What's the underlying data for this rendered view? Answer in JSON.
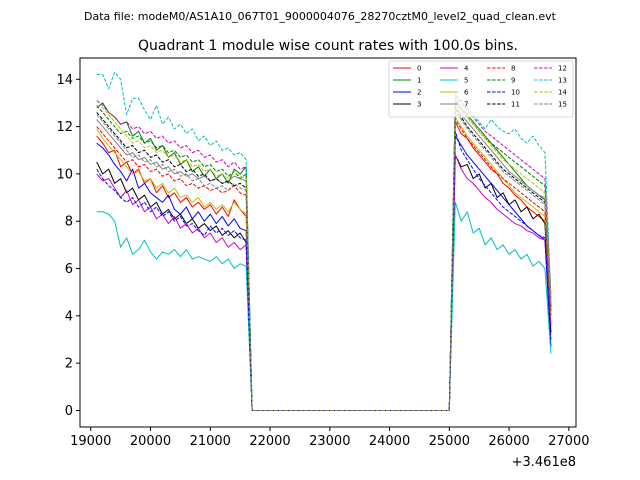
{
  "header": {
    "data_file": "Data file: modeM0/AS1A10_067T01_9000004076_28270cztM0_level2_quad_clean.evt"
  },
  "chart_data": {
    "type": "line",
    "title": "Quadrant 1 module wise count rates with 100.0s bins.",
    "xlabel": "",
    "ylabel": "",
    "x_offset_label": "+3.461e8",
    "xlim": [
      18820,
      27120
    ],
    "ylim": [
      -0.7,
      14.9
    ],
    "x_ticks": [
      19000,
      20000,
      21000,
      22000,
      23000,
      24000,
      25000,
      26000,
      27000
    ],
    "x_tick_labels": [
      "19000",
      "20000",
      "21000",
      "22000",
      "23000",
      "24000",
      "25000",
      "26000",
      "27000"
    ],
    "y_ticks": [
      0,
      2,
      4,
      6,
      8,
      10,
      12,
      14
    ],
    "y_tick_labels": [
      "0",
      "2",
      "4",
      "6",
      "8",
      "10",
      "12",
      "14"
    ],
    "legend_position": "top-right",
    "segments": [
      {
        "x_start": 19100,
        "x_end": 21600,
        "step": 100
      },
      {
        "x_start": 21700,
        "x_end": 25000,
        "step": 100,
        "zero": true
      },
      {
        "x_start": 25100,
        "x_end": 26700,
        "step": 100
      }
    ],
    "series": [
      {
        "name": "0",
        "color": "#ff0000",
        "dash": "solid",
        "seg1": [
          11.6,
          11.3,
          10.9,
          11.0,
          10.3,
          10.5,
          10.0,
          10.2,
          9.6,
          9.8,
          9.2,
          9.5,
          9.0,
          9.2,
          8.8,
          9.0,
          8.6,
          8.8,
          8.5,
          8.7,
          8.3,
          8.6,
          8.2,
          8.9,
          8.5,
          8.2
        ],
        "seg3": [
          12.2,
          11.7,
          11.5,
          11.1,
          10.8,
          10.5,
          10.2,
          10.0,
          9.6,
          9.4,
          9.1,
          8.9,
          8.6,
          8.4,
          8.2,
          8.0,
          4.0
        ]
      },
      {
        "name": "1",
        "color": "#008000",
        "dash": "solid",
        "seg1": [
          12.8,
          13.0,
          12.6,
          12.4,
          12.1,
          12.2,
          11.6,
          11.8,
          11.3,
          11.5,
          11.0,
          11.2,
          10.7,
          10.9,
          10.4,
          10.6,
          10.1,
          10.3,
          9.9,
          10.2,
          9.8,
          10.0,
          9.6,
          10.2,
          10.0,
          10.3
        ],
        "seg3": [
          13.1,
          12.8,
          12.5,
          12.2,
          11.9,
          11.6,
          11.3,
          11.0,
          10.7,
          10.4,
          10.1,
          9.8,
          9.5,
          9.3,
          9.1,
          8.9,
          4.4
        ]
      },
      {
        "name": "2",
        "color": "#0000ff",
        "dash": "solid",
        "seg1": [
          11.3,
          11.1,
          10.8,
          10.4,
          10.1,
          9.7,
          10.2,
          9.4,
          9.6,
          9.2,
          9.0,
          8.8,
          9.1,
          8.5,
          8.3,
          8.6,
          8.1,
          8.4,
          8.0,
          8.3,
          7.9,
          8.2,
          7.8,
          8.1,
          7.7,
          7.6
        ],
        "seg3": [
          11.6,
          11.2,
          10.8,
          10.5,
          10.2,
          9.9,
          9.6,
          9.3,
          9.0,
          8.7,
          8.4,
          8.1,
          7.8,
          7.6,
          7.4,
          7.2,
          2.7
        ]
      },
      {
        "name": "3",
        "color": "#000000",
        "dash": "solid",
        "seg1": [
          10.5,
          10.0,
          10.2,
          9.6,
          9.8,
          9.2,
          9.4,
          8.9,
          9.1,
          8.6,
          8.8,
          8.3,
          8.5,
          8.1,
          8.3,
          7.9,
          8.1,
          7.7,
          7.9,
          7.6,
          7.8,
          7.4,
          7.6,
          7.3,
          7.5,
          7.1
        ],
        "seg3": [
          10.8,
          10.3,
          10.4,
          9.8,
          10.0,
          9.4,
          9.6,
          9.0,
          9.2,
          8.7,
          8.9,
          8.4,
          8.6,
          8.1,
          8.3,
          7.9,
          3.3
        ]
      },
      {
        "name": "4",
        "color": "#cc00cc",
        "dash": "solid",
        "seg1": [
          10.0,
          9.7,
          9.8,
          9.4,
          9.0,
          9.3,
          8.7,
          8.9,
          8.4,
          8.6,
          8.1,
          8.3,
          7.9,
          8.2,
          7.7,
          7.9,
          7.5,
          7.7,
          7.3,
          7.5,
          7.1,
          7.3,
          6.9,
          7.1,
          6.8,
          7.0
        ],
        "seg3": [
          10.8,
          10.2,
          9.8,
          9.6,
          9.3,
          9.0,
          8.8,
          8.5,
          8.3,
          8.1,
          7.9,
          7.8,
          7.6,
          7.5,
          7.3,
          7.2,
          3.6
        ]
      },
      {
        "name": "5",
        "color": "#00bfbf",
        "dash": "solid",
        "seg1": [
          8.4,
          8.4,
          8.3,
          8.0,
          6.9,
          7.3,
          6.6,
          6.8,
          7.2,
          6.7,
          6.4,
          6.7,
          6.6,
          6.8,
          6.5,
          6.8,
          6.4,
          6.5,
          6.4,
          6.3,
          6.5,
          6.2,
          6.4,
          6.0,
          6.2,
          6.1
        ],
        "seg3": [
          8.8,
          8.0,
          8.4,
          7.5,
          7.7,
          7.0,
          7.3,
          6.8,
          7.0,
          6.6,
          6.8,
          6.4,
          6.6,
          6.1,
          6.3,
          6.0,
          2.4
        ]
      },
      {
        "name": "6",
        "color": "#bfbf00",
        "dash": "solid",
        "seg1": [
          11.9,
          11.5,
          11.2,
          10.9,
          10.6,
          10.3,
          10.0,
          10.1,
          9.7,
          9.8,
          9.4,
          9.6,
          9.2,
          9.4,
          9.0,
          9.1,
          8.8,
          9.0,
          8.6,
          8.8,
          8.5,
          8.7,
          8.4,
          8.8,
          8.5,
          8.3
        ],
        "seg3": [
          12.4,
          12.0,
          11.6,
          11.3,
          11.0,
          10.7,
          10.4,
          10.1,
          9.8,
          9.5,
          9.2,
          9.0,
          8.8,
          8.6,
          8.4,
          8.2,
          4.1
        ]
      },
      {
        "name": "7",
        "color": "#808080",
        "dash": "solid",
        "seg1": [
          12.3,
          12.0,
          11.7,
          11.4,
          11.1,
          10.8,
          10.9,
          10.6,
          10.7,
          10.4,
          10.5,
          10.2,
          10.3,
          10.0,
          10.1,
          9.9,
          10.0,
          9.8,
          9.9,
          9.7,
          9.8,
          9.6,
          9.7,
          9.9,
          9.8,
          9.7
        ],
        "seg3": [
          12.9,
          12.5,
          12.2,
          11.9,
          11.6,
          11.3,
          11.0,
          10.7,
          10.4,
          10.1,
          9.9,
          9.7,
          9.5,
          9.3,
          9.1,
          9.0,
          4.5
        ]
      },
      {
        "name": "8",
        "color": "#ff0000",
        "dash": "dashed",
        "seg1": [
          12.0,
          11.7,
          11.4,
          11.1,
          10.8,
          10.5,
          10.6,
          10.3,
          10.4,
          10.1,
          10.2,
          9.9,
          10.0,
          9.7,
          9.8,
          9.5,
          9.6,
          9.4,
          9.5,
          9.3,
          9.4,
          9.2,
          9.3,
          9.5,
          9.2,
          9.1
        ],
        "seg3": [
          12.3,
          11.9,
          11.5,
          11.2,
          10.9,
          10.6,
          10.3,
          10.0,
          9.8,
          9.6,
          9.4,
          9.2,
          9.0,
          8.8,
          8.6,
          8.4,
          4.2
        ]
      },
      {
        "name": "9",
        "color": "#008000",
        "dash": "dashed",
        "seg1": [
          12.9,
          12.6,
          12.3,
          12.0,
          11.7,
          11.8,
          11.5,
          11.6,
          11.3,
          11.4,
          11.1,
          11.2,
          10.9,
          11.0,
          10.7,
          10.8,
          10.5,
          10.6,
          10.3,
          10.4,
          10.1,
          10.2,
          9.9,
          10.1,
          9.8,
          10.0
        ],
        "seg3": [
          13.0,
          12.7,
          12.4,
          12.1,
          11.8,
          11.5,
          11.3,
          11.1,
          10.9,
          10.7,
          10.5,
          10.3,
          10.1,
          9.9,
          9.7,
          9.5,
          4.6
        ]
      },
      {
        "name": "10",
        "color": "#0000ff",
        "dash": "dashed",
        "seg1": [
          10.2,
          9.8,
          9.5,
          9.3,
          9.0,
          8.8,
          9.0,
          8.6,
          8.8,
          8.4,
          8.6,
          8.2,
          8.4,
          8.0,
          8.2,
          7.8,
          7.9,
          7.6,
          7.4,
          7.8,
          7.5,
          7.7,
          7.4,
          7.6,
          7.3,
          7.2
        ],
        "seg3": [
          11.8,
          11.0,
          10.6,
          10.2,
          9.8,
          9.5,
          9.2,
          8.9,
          8.6,
          8.4,
          8.2,
          8.0,
          7.8,
          7.6,
          7.4,
          7.3,
          3.0
        ]
      },
      {
        "name": "11",
        "color": "#000000",
        "dash": "dashed",
        "seg1": [
          12.6,
          12.3,
          12.0,
          11.7,
          11.4,
          11.1,
          11.2,
          10.9,
          11.0,
          10.7,
          10.8,
          10.5,
          10.6,
          10.3,
          10.4,
          10.1,
          10.2,
          9.9,
          10.0,
          9.7,
          9.8,
          9.6,
          9.7,
          9.5,
          9.6,
          9.4
        ],
        "seg3": [
          12.8,
          12.4,
          12.0,
          11.7,
          11.4,
          11.1,
          10.8,
          10.5,
          10.2,
          10.0,
          9.8,
          9.6,
          9.4,
          9.2,
          9.0,
          8.8,
          4.3
        ]
      },
      {
        "name": "12",
        "color": "#cc00cc",
        "dash": "dashed",
        "seg1": [
          13.1,
          12.9,
          12.6,
          12.4,
          12.1,
          12.2,
          11.9,
          12.0,
          11.7,
          11.8,
          11.5,
          11.6,
          11.3,
          11.4,
          11.1,
          11.2,
          10.9,
          11.0,
          10.7,
          10.8,
          10.5,
          10.6,
          10.3,
          10.5,
          10.2,
          10.3
        ],
        "seg3": [
          13.3,
          13.0,
          12.7,
          12.4,
          12.1,
          11.8,
          11.6,
          11.4,
          11.2,
          11.0,
          10.8,
          10.6,
          10.4,
          10.2,
          10.0,
          9.8,
          4.8
        ]
      },
      {
        "name": "13",
        "color": "#00bfbf",
        "dash": "dashed",
        "seg1": [
          14.2,
          14.2,
          13.6,
          14.3,
          14.0,
          12.5,
          13.2,
          13.2,
          12.7,
          12.3,
          12.9,
          12.1,
          12.4,
          11.9,
          12.1,
          11.7,
          11.9,
          11.4,
          11.6,
          11.2,
          11.4,
          11.0,
          11.1,
          10.8,
          10.9,
          10.6
        ],
        "seg3": [
          13.4,
          13.1,
          12.8,
          12.5,
          12.2,
          11.9,
          12.3,
          12.0,
          11.8,
          11.7,
          11.9,
          11.5,
          11.3,
          11.6,
          11.2,
          10.9,
          4.9
        ]
      },
      {
        "name": "14",
        "color": "#bfbf00",
        "dash": "dashed",
        "seg1": [
          12.9,
          12.8,
          12.5,
          12.2,
          11.9,
          11.6,
          11.3,
          11.4,
          11.1,
          11.2,
          10.9,
          11.0,
          10.7,
          10.8,
          10.5,
          10.6,
          10.3,
          10.4,
          10.1,
          10.2,
          9.9,
          10.0,
          9.8,
          10.1,
          9.9,
          9.8
        ],
        "seg3": [
          13.2,
          12.8,
          12.4,
          12.1,
          11.8,
          11.5,
          11.2,
          10.9,
          10.6,
          10.4,
          10.2,
          10.0,
          9.8,
          9.6,
          9.4,
          9.2,
          4.6
        ]
      },
      {
        "name": "15",
        "color": "#808080",
        "dash": "dashed",
        "seg1": [
          12.5,
          12.2,
          11.9,
          11.6,
          11.3,
          11.0,
          10.7,
          10.8,
          10.5,
          10.6,
          10.3,
          10.4,
          10.1,
          10.2,
          9.9,
          10.0,
          9.7,
          9.8,
          9.5,
          9.6,
          9.4,
          9.5,
          9.3,
          9.6,
          9.4,
          9.3
        ],
        "seg3": [
          12.7,
          12.3,
          11.9,
          11.6,
          11.3,
          11.0,
          10.7,
          10.4,
          10.1,
          9.9,
          9.7,
          9.5,
          9.3,
          9.1,
          8.9,
          8.7,
          4.3
        ]
      }
    ]
  }
}
